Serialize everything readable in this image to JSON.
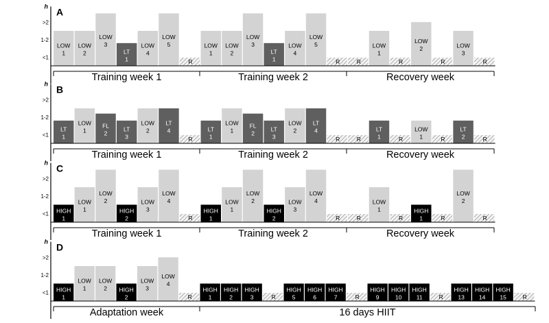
{
  "colors": {
    "LOW": "#d3d3d3",
    "LT": "#5f5f5f",
    "FL": "#5f5f5f",
    "HIGH": "#000000",
    "rest_hatch": "#aaaaaa",
    "axis": "#000000"
  },
  "chart_data": [
    {
      "type": "bar",
      "panel": "A",
      "y_unit": "h",
      "y_levels": [
        "<1",
        "1-2",
        ">2"
      ],
      "groups": [
        "Training week 1",
        "Training week 2",
        "Recovery week"
      ],
      "sessions": [
        {
          "type": "LOW",
          "num": "1",
          "level": 2
        },
        {
          "type": "LOW",
          "num": "2",
          "level": 2
        },
        {
          "type": "LOW",
          "num": "3",
          "level": 3
        },
        {
          "type": "LT",
          "num": "1",
          "level": 1.3
        },
        {
          "type": "LOW",
          "num": "4",
          "level": 2
        },
        {
          "type": "LOW",
          "num": "5",
          "level": 3
        },
        {
          "type": "R"
        },
        {
          "type": "LOW",
          "num": "1",
          "level": 2
        },
        {
          "type": "LOW",
          "num": "2",
          "level": 2
        },
        {
          "type": "LOW",
          "num": "3",
          "level": 3
        },
        {
          "type": "LT",
          "num": "1",
          "level": 1.3
        },
        {
          "type": "LOW",
          "num": "4",
          "level": 2
        },
        {
          "type": "LOW",
          "num": "5",
          "level": 3
        },
        {
          "type": "R"
        },
        {
          "type": "R"
        },
        {
          "type": "LOW",
          "num": "1",
          "level": 2
        },
        {
          "type": "R"
        },
        {
          "type": "LOW",
          "num": "2",
          "level": 2.5
        },
        {
          "type": "R"
        },
        {
          "type": "LOW",
          "num": "3",
          "level": 2
        },
        {
          "type": "R"
        }
      ]
    },
    {
      "type": "bar",
      "panel": "B",
      "y_unit": "h",
      "y_levels": [
        "<1",
        "1-2",
        ">2"
      ],
      "groups": [
        "Training week 1",
        "Training week 2",
        "Recovery week"
      ],
      "sessions": [
        {
          "type": "LT",
          "num": "1",
          "level": 1.3
        },
        {
          "type": "LOW",
          "num": "1",
          "level": 2
        },
        {
          "type": "FL",
          "num": "2",
          "level": 1.7
        },
        {
          "type": "LT",
          "num": "3",
          "level": 1.3
        },
        {
          "type": "LOW",
          "num": "2",
          "level": 2
        },
        {
          "type": "LT",
          "num": "4",
          "level": 2
        },
        {
          "type": "R"
        },
        {
          "type": "LT",
          "num": "1",
          "level": 1.3
        },
        {
          "type": "LOW",
          "num": "1",
          "level": 2
        },
        {
          "type": "FL",
          "num": "2",
          "level": 1.7
        },
        {
          "type": "LT",
          "num": "3",
          "level": 1.3
        },
        {
          "type": "LOW",
          "num": "2",
          "level": 2
        },
        {
          "type": "LT",
          "num": "4",
          "level": 2
        },
        {
          "type": "R"
        },
        {
          "type": "R"
        },
        {
          "type": "LT",
          "num": "1",
          "level": 1.3
        },
        {
          "type": "R"
        },
        {
          "type": "LOW",
          "num": "1",
          "level": 1.3
        },
        {
          "type": "R"
        },
        {
          "type": "LT",
          "num": "2",
          "level": 1.3
        },
        {
          "type": "R"
        }
      ]
    },
    {
      "type": "bar",
      "panel": "C",
      "y_unit": "h",
      "y_levels": [
        "<1",
        "1-2",
        ">2"
      ],
      "groups": [
        "Training week 1",
        "Training week 2",
        "Recovery week"
      ],
      "sessions": [
        {
          "type": "HIGH",
          "num": "1",
          "level": 1
        },
        {
          "type": "LOW",
          "num": "1",
          "level": 2
        },
        {
          "type": "LOW",
          "num": "2",
          "level": 3
        },
        {
          "type": "HIGH",
          "num": "2",
          "level": 1
        },
        {
          "type": "LOW",
          "num": "3",
          "level": 2
        },
        {
          "type": "LOW",
          "num": "4",
          "level": 3
        },
        {
          "type": "R"
        },
        {
          "type": "HIGH",
          "num": "1",
          "level": 1
        },
        {
          "type": "LOW",
          "num": "1",
          "level": 2
        },
        {
          "type": "LOW",
          "num": "2",
          "level": 3
        },
        {
          "type": "HIGH",
          "num": "2",
          "level": 1
        },
        {
          "type": "LOW",
          "num": "3",
          "level": 2
        },
        {
          "type": "LOW",
          "num": "4",
          "level": 3
        },
        {
          "type": "R"
        },
        {
          "type": "R"
        },
        {
          "type": "LOW",
          "num": "1",
          "level": 2
        },
        {
          "type": "R"
        },
        {
          "type": "HIGH",
          "num": "1",
          "level": 1
        },
        {
          "type": "R"
        },
        {
          "type": "LOW",
          "num": "2",
          "level": 3
        },
        {
          "type": "R"
        }
      ]
    },
    {
      "type": "bar",
      "panel": "D",
      "y_unit": "h",
      "y_levels": [
        "<1",
        "1-2",
        ">2"
      ],
      "groups": [
        "Adaptation week",
        "16 days HIIT"
      ],
      "sessions": [
        {
          "type": "HIGH",
          "num": "1",
          "level": 1
        },
        {
          "type": "LOW",
          "num": "1",
          "level": 2
        },
        {
          "type": "LOW",
          "num": "2",
          "level": 2
        },
        {
          "type": "HIGH",
          "num": "2",
          "level": 1
        },
        {
          "type": "LOW",
          "num": "3",
          "level": 2
        },
        {
          "type": "LOW",
          "num": "4",
          "level": 2.5
        },
        {
          "type": "R"
        },
        {
          "type": "HIGH",
          "num": "1",
          "level": 1
        },
        {
          "type": "HIGH",
          "num": "2",
          "level": 1
        },
        {
          "type": "HIGH",
          "num": "3",
          "level": 1
        },
        {
          "type": "R"
        },
        {
          "type": "HIGH",
          "num": "5",
          "level": 1
        },
        {
          "type": "HIGH",
          "num": "6",
          "level": 1
        },
        {
          "type": "HIGH",
          "num": "7",
          "level": 1
        },
        {
          "type": "R"
        },
        {
          "type": "HIGH",
          "num": "9",
          "level": 1
        },
        {
          "type": "HIGH",
          "num": "10",
          "level": 1
        },
        {
          "type": "HIGH",
          "num": "11",
          "level": 1
        },
        {
          "type": "R"
        },
        {
          "type": "HIGH",
          "num": "13",
          "level": 1
        },
        {
          "type": "HIGH",
          "num": "14",
          "level": 1
        },
        {
          "type": "HIGH",
          "num": "15",
          "level": 1
        },
        {
          "type": "R"
        }
      ]
    }
  ]
}
